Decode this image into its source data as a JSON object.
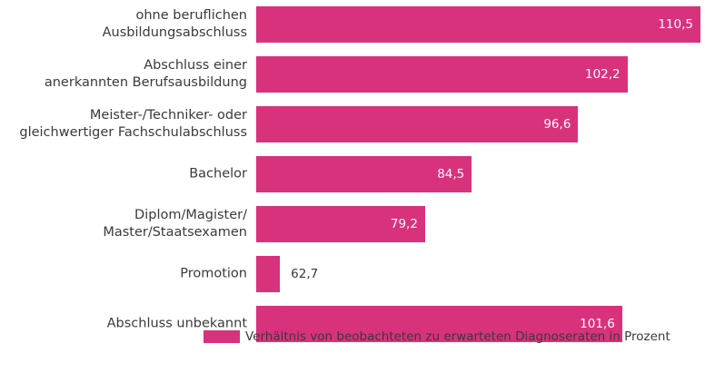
{
  "chart_data": {
    "type": "bar",
    "orientation": "horizontal",
    "categories": [
      "ohne beruflichen\nAusbildungsabschluss",
      "Abschluss einer\nanerkannten Berufsausbildung",
      "Meister-/Techniker- oder\ngleichwertiger Fachschulabschluss",
      "Bachelor",
      "Diplom/Magister/\nMaster/Staatsexamen",
      "Promotion",
      "Abschluss unbekannt"
    ],
    "series": [
      {
        "name": "Verhältnis von beobachteten zu erwarteten Diagnoseraten in Prozent",
        "color": "#d8327c",
        "values": [
          110.5,
          102.2,
          96.6,
          84.5,
          79.2,
          62.7,
          101.6
        ],
        "value_labels": [
          "110,5",
          "102,2",
          "96,6",
          "84,5",
          "79,2",
          "62,7",
          "101,6"
        ]
      }
    ],
    "xlim": [
      60,
      110.5
    ],
    "legend": "bottom"
  }
}
